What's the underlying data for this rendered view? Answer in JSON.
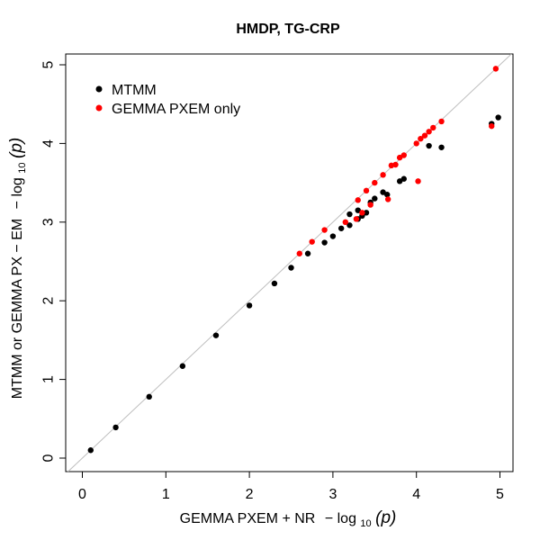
{
  "chart_data": {
    "type": "scatter",
    "title": "HMDP, TG-CRP",
    "xlabel": {
      "prefix": "GEMMA PXEM",
      "op": "+",
      "mid": "NR",
      "minus": "−",
      "log": "log",
      "base": "10",
      "var": "(p)"
    },
    "ylabel": {
      "prefix": "MTMM or GEMMA PX",
      "op": "−",
      "mid": "EM",
      "minus": "−",
      "log": "log",
      "base": "10",
      "var": "(p)"
    },
    "xlim": [
      0,
      5
    ],
    "ylim": [
      0,
      5
    ],
    "x_ticks": [
      0,
      1,
      2,
      3,
      4,
      5
    ],
    "y_ticks": [
      0,
      1,
      2,
      3,
      4,
      5
    ],
    "reference_line": {
      "type": "identity",
      "color": "#bebebe"
    },
    "legend": {
      "position": "top-left",
      "entries": [
        {
          "label": "MTMM",
          "color": "#000000"
        },
        {
          "label": "GEMMA PXEM only",
          "color": "#ff0000"
        }
      ]
    },
    "series": [
      {
        "name": "MTMM",
        "color": "#000000",
        "points": [
          [
            0.1,
            0.1
          ],
          [
            0.4,
            0.39
          ],
          [
            0.8,
            0.78
          ],
          [
            1.2,
            1.17
          ],
          [
            1.6,
            1.56
          ],
          [
            2.0,
            1.94
          ],
          [
            2.3,
            2.22
          ],
          [
            2.5,
            2.42
          ],
          [
            2.7,
            2.6
          ],
          [
            2.9,
            2.74
          ],
          [
            3.0,
            2.82
          ],
          [
            3.1,
            2.92
          ],
          [
            3.2,
            2.96
          ],
          [
            3.3,
            3.04
          ],
          [
            3.35,
            3.08
          ],
          [
            3.4,
            3.12
          ],
          [
            3.2,
            3.1
          ],
          [
            3.3,
            3.15
          ],
          [
            3.45,
            3.25
          ],
          [
            3.5,
            3.3
          ],
          [
            3.6,
            3.38
          ],
          [
            3.65,
            3.35
          ],
          [
            3.8,
            3.52
          ],
          [
            3.85,
            3.55
          ],
          [
            4.15,
            3.97
          ],
          [
            4.3,
            3.95
          ],
          [
            4.9,
            4.25
          ],
          [
            4.98,
            4.33
          ]
        ]
      },
      {
        "name": "GEMMA PXEM only",
        "color": "#ff0000",
        "points": [
          [
            3.3,
            3.28
          ],
          [
            3.4,
            3.4
          ],
          [
            3.5,
            3.5
          ],
          [
            3.6,
            3.6
          ],
          [
            3.7,
            3.72
          ],
          [
            3.75,
            3.73
          ],
          [
            3.8,
            3.82
          ],
          [
            3.85,
            3.85
          ],
          [
            4.0,
            4.0
          ],
          [
            4.05,
            4.06
          ],
          [
            4.1,
            4.1
          ],
          [
            4.15,
            4.15
          ],
          [
            4.2,
            4.2
          ],
          [
            4.3,
            4.28
          ],
          [
            4.95,
            4.95
          ],
          [
            4.9,
            4.22
          ],
          [
            4.02,
            3.52
          ],
          [
            3.66,
            3.29
          ],
          [
            3.45,
            3.22
          ],
          [
            3.35,
            3.12
          ],
          [
            3.28,
            3.04
          ],
          [
            3.15,
            3.0
          ],
          [
            2.9,
            2.9
          ],
          [
            2.75,
            2.75
          ],
          [
            2.6,
            2.6
          ]
        ]
      }
    ]
  }
}
